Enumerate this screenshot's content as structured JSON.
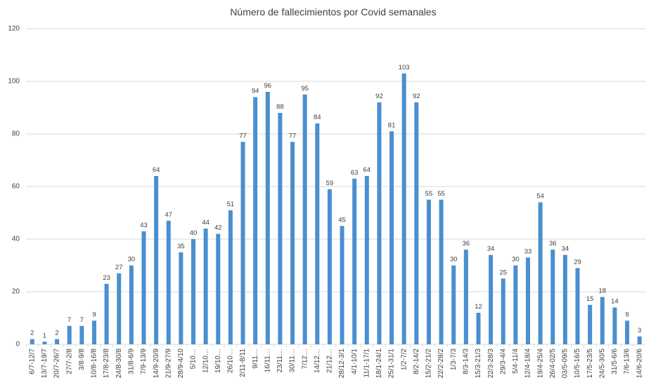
{
  "chart_data": {
    "type": "bar",
    "title": "Número de fallecimientos por Covid semanales",
    "categories": [
      "6/7-12/7",
      "13/7-19/7",
      "20/7-26/7",
      "27/7-2/8",
      "3/8-9/8",
      "10/8-16/8",
      "17/8-23/8",
      "24/8-30/8",
      "31/8-6/9",
      "7/9-13/9",
      "14/9-20/9",
      "21/9-27/9",
      "28/9-4/10",
      "5/10…",
      "12/10…",
      "19/10…",
      "26/10…",
      "2/11-8/11",
      "9/11…",
      "16/11…",
      "23/11…",
      "30/11…",
      "7/12…",
      "14/12…",
      "21/12…",
      "28/12-3/1",
      "4/1-10/1",
      "11/1-17/1",
      "18/1-24/1",
      "25/1-31/1",
      "1/2-7/2",
      "8/2-14/2",
      "15/2-21/2",
      "22/2-28/2",
      "1/3-7/3",
      "8/3-14/3",
      "15/3-21/3",
      "22/3-28/3",
      "29/3-4/4",
      "5/4-11/4",
      "12/4-18/4",
      "19/4-25/4",
      "26/4-02/5",
      "03/5-09/5",
      "10/5-16/5",
      "17/5-23/5",
      "24/5-30/5",
      "31/5-6/6",
      "7/6-13/6",
      "14/6-20/6"
    ],
    "values": [
      2,
      1,
      2,
      7,
      7,
      9,
      23,
      27,
      30,
      43,
      64,
      47,
      35,
      40,
      44,
      42,
      51,
      77,
      94,
      96,
      88,
      77,
      95,
      84,
      59,
      45,
      63,
      64,
      92,
      81,
      103,
      92,
      55,
      55,
      30,
      36,
      12,
      34,
      25,
      30,
      33,
      54,
      36,
      34,
      29,
      15,
      18,
      14,
      9,
      3
    ],
    "color": "#4a8fd0",
    "ylim": [
      0,
      120
    ],
    "yticks": [
      0,
      20,
      40,
      60,
      80,
      100,
      120
    ],
    "grid": true
  }
}
